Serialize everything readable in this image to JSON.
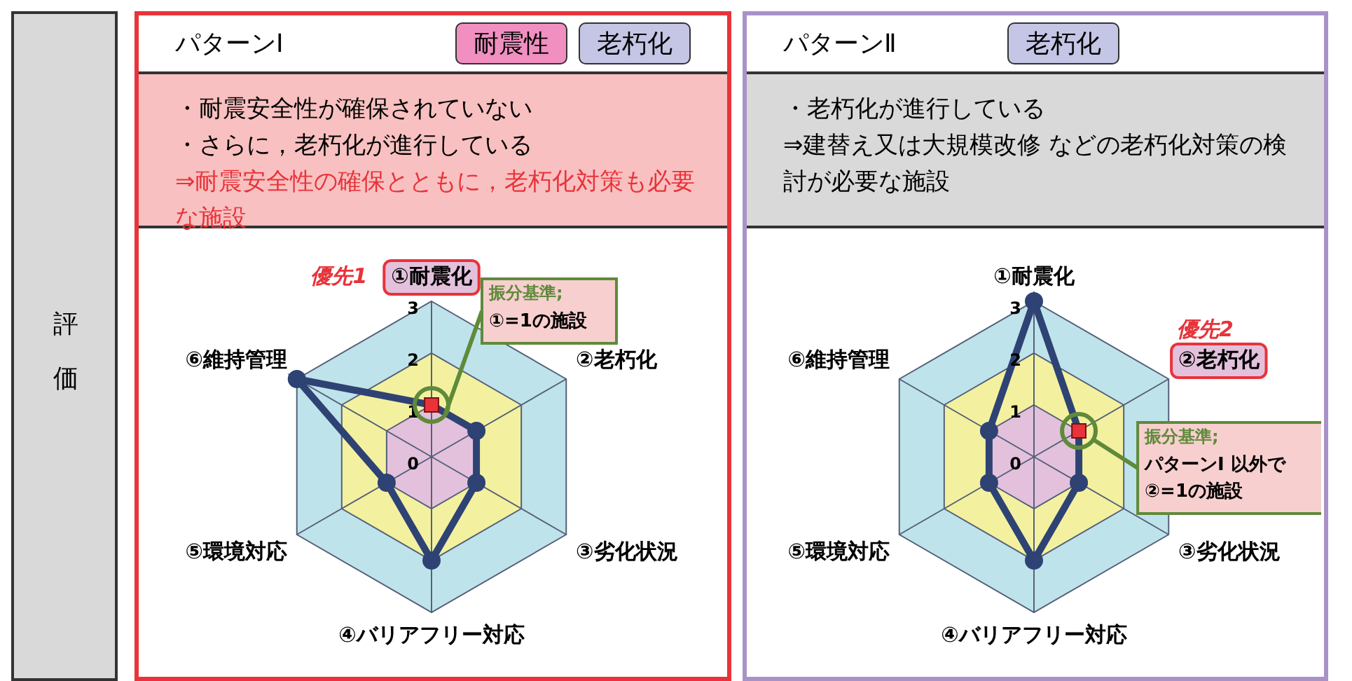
{
  "chart_data": [
    {
      "type": "radar",
      "title": "パターンⅠ",
      "categories": [
        "①耐震化",
        "②老朽化",
        "③劣化状況",
        "④バリアフリー対応",
        "⑤環境対応",
        "⑥維持管理"
      ],
      "series": [
        {
          "color": "#2e4374",
          "values": [
            1,
            1,
            1,
            2,
            1,
            3
          ]
        }
      ],
      "ylim": [
        0,
        3
      ],
      "yticks": [
        0,
        1,
        2,
        3
      ],
      "grid": true,
      "marker": "circle",
      "annotations": [
        "評価",
        "耐震性",
        "老朽化",
        "・耐震安全性が確保されていない",
        "・さらに，老朽化が進行している",
        "⇒耐震安全性の確保とともに，老朽化対策も必要な施設",
        "優先1",
        "振分基準;\n①=1の施設"
      ]
    },
    {
      "type": "radar",
      "title": "パターンⅡ",
      "categories": [
        "①耐震化",
        "②老朽化",
        "③劣化状況",
        "④バリアフリー対応",
        "⑤環境対応",
        "⑥維持管理"
      ],
      "series": [
        {
          "color": "#2e4374",
          "values": [
            3,
            1,
            1,
            2,
            1,
            1
          ]
        }
      ],
      "ylim": [
        0,
        3
      ],
      "yticks": [
        0,
        1,
        2,
        3
      ],
      "grid": true,
      "marker": "circle",
      "annotations": [
        "老朽化",
        "・老朽化が進行している",
        "⇒建替え又は大規模改修 などの老朽化対策の検討が必要な施設",
        "優先2",
        "振分基準;\nパターンⅠ 以外で\n②=1の施設"
      ]
    }
  ]
}
